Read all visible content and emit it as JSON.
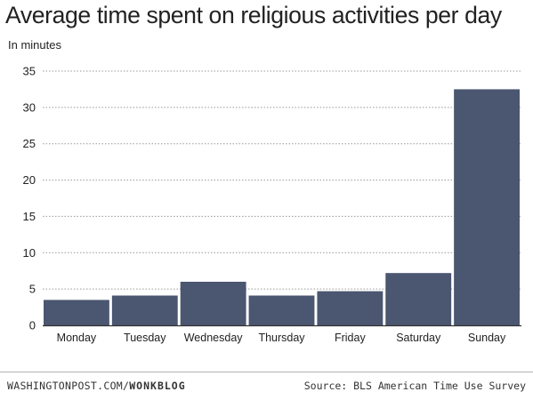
{
  "header": {
    "title": "Average time spent on religious activities per day",
    "subtitle": "In minutes"
  },
  "footer": {
    "credit_prefix": "WASHINGTONPOST.COM/",
    "credit_suffix": "WONKBLOG",
    "source": "Source: BLS American Time Use Survey"
  },
  "colors": {
    "bar": "#4b5670",
    "grid": "#999999",
    "axis": "#333333",
    "text": "#222222"
  },
  "chart_data": {
    "type": "bar",
    "title": "Average time spent on religious activities per day",
    "ylabel": "In minutes",
    "xlabel": "",
    "categories": [
      "Monday",
      "Tuesday",
      "Wednesday",
      "Thursday",
      "Friday",
      "Saturday",
      "Sunday"
    ],
    "values": [
      3.5,
      4.1,
      6.0,
      4.1,
      4.7,
      7.2,
      32.5
    ],
    "ylim": [
      0,
      35
    ],
    "yticks": [
      0,
      5,
      10,
      15,
      20,
      25,
      30,
      35
    ],
    "grid": true,
    "legend": "none"
  }
}
